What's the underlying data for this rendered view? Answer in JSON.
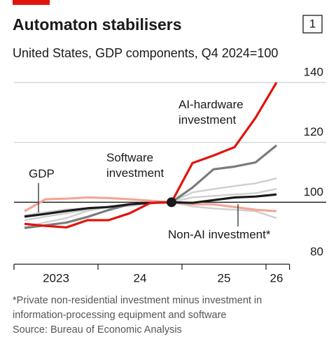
{
  "chart_data": {
    "type": "line",
    "title": "Automaton stabilisers",
    "badge": "1",
    "subtitle": "United States, GDP components, Q4 2024=100",
    "x": [
      2023.125,
      2023.375,
      2023.625,
      2023.875,
      2024.125,
      2024.375,
      2024.625,
      2024.875,
      2025.125,
      2025.375,
      2025.625,
      2025.875,
      2026.125
    ],
    "xlim": [
      2023,
      2026.28
    ],
    "xticks": [
      {
        "value": 2023.5,
        "label": "2023"
      },
      {
        "value": 2024.5,
        "label": "24"
      },
      {
        "value": 2025.5,
        "label": "25"
      },
      {
        "value": 2026.125,
        "label": "26"
      }
    ],
    "xdividers": [
      2023,
      2024,
      2025,
      2026,
      2026.28
    ],
    "ylim": [
      80,
      140
    ],
    "yticks": [
      80,
      100,
      120,
      140
    ],
    "grid": true,
    "base": {
      "x": 2024.875,
      "value": 100
    },
    "series": [
      {
        "color": "#cfcfcf",
        "values": [
          95.6,
          96.7,
          97.6,
          98.0,
          98.4,
          98.7,
          99.8,
          100,
          103.3,
          104.4,
          105.4,
          106.3,
          108.0
        ]
      },
      {
        "color": "#cfcfcf",
        "values": [
          91.7,
          93.3,
          94.7,
          97.1,
          98.4,
          99.3,
          99.8,
          100,
          101.6,
          102.1,
          102.6,
          103.0,
          104.5
        ]
      },
      {
        "color": "#cfcfcf",
        "values": [
          94.0,
          95.2,
          96.3,
          97.5,
          98.6,
          99.1,
          99.5,
          100,
          98.6,
          97.9,
          97.5,
          97.0,
          94.7
        ]
      },
      {
        "name": "Non-AI investment*",
        "color": "#f4a595",
        "values": [
          97.0,
          101.0,
          101.2,
          101.6,
          101.4,
          101.0,
          100.5,
          100,
          99.3,
          99.3,
          98.4,
          97.5,
          97.0
        ]
      },
      {
        "name": "Software investment",
        "color": "#7b7b7b",
        "values": [
          91.4,
          92.3,
          93.2,
          95.1,
          97.4,
          99.3,
          99.8,
          100,
          104.9,
          111.0,
          111.9,
          113.3,
          119.0
        ]
      },
      {
        "name": "GDP",
        "color": "#1a1a1a",
        "values": [
          95.2,
          96.1,
          97.1,
          98.0,
          98.4,
          99.3,
          99.8,
          100,
          99.8,
          100.7,
          101.6,
          101.9,
          102.6
        ]
      },
      {
        "name": "AI-hardware investment",
        "color": "#e3120b",
        "values": [
          92.8,
          92.1,
          91.6,
          94.0,
          94.0,
          96.3,
          99.8,
          100,
          113.1,
          115.6,
          118.4,
          128.2,
          140.0
        ]
      }
    ],
    "footnote": "*Private non-residential investment minus investment in information-processing equipment and software",
    "source": "Source: Bureau of Economic Analysis"
  }
}
